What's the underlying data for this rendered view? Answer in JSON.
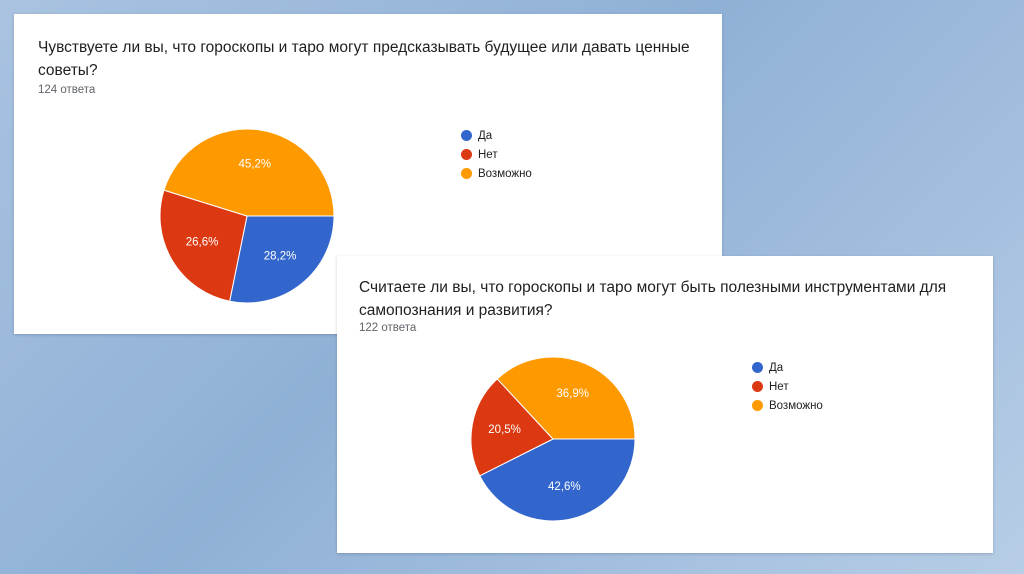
{
  "colors": {
    "yes": "#3366cc",
    "no": "#dc3912",
    "maybe": "#ff9900"
  },
  "chart_data": [
    {
      "type": "pie",
      "title": "Чувствуете ли вы, что гороскопы и таро могут предсказывать будущее или давать ценные советы?",
      "subtitle": "124 ответа",
      "categories": [
        "Да",
        "Нет",
        "Возможно"
      ],
      "values": [
        28.2,
        26.6,
        45.2
      ],
      "labels": [
        "28,2%",
        "26,6%",
        "45,2%"
      ],
      "legend_position": "right"
    },
    {
      "type": "pie",
      "title": "Считаете ли вы, что гороскопы и таро могут быть полезными инструментами для самопознания и развития?",
      "subtitle": "122 ответа",
      "categories": [
        "Да",
        "Нет",
        "Возможно"
      ],
      "values": [
        42.6,
        20.5,
        36.9
      ],
      "labels": [
        "42,6%",
        "20,5%",
        "36,9%"
      ],
      "legend_position": "right"
    }
  ]
}
